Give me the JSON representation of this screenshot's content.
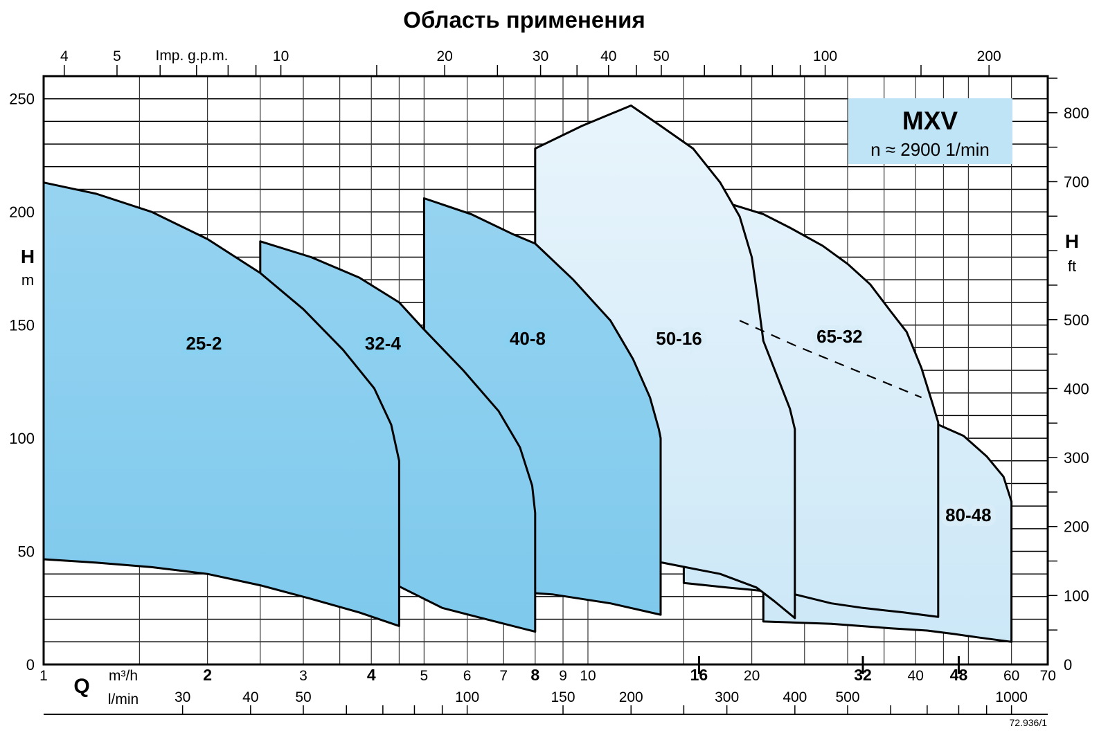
{
  "title": "Область применения",
  "stamp": "72.936/1",
  "legend": {
    "model": "MXV",
    "speed": "n ≈ 2900 1/min",
    "box_color": "#bfe4f6"
  },
  "colors": {
    "dark_top": "#9cd6f2",
    "dark_bottom": "#7cc8ec",
    "light_top": "#eaf5fc",
    "light_bottom": "#cbe7f7",
    "dark_halo": "#8ad0f0",
    "light_halo": "#d9edf9",
    "grid_h": "#000000",
    "grid_v": "#333333",
    "outline": "#000000"
  },
  "axes": {
    "x_m3h": {
      "symbol": "Q",
      "unit": "m³/h",
      "range": [
        1,
        70
      ],
      "scale": "log",
      "ticks": [
        {
          "v": 1,
          "label": "1",
          "bold": false
        },
        {
          "v": 2,
          "label": "2",
          "bold": true
        },
        {
          "v": 3,
          "label": "3",
          "bold": false
        },
        {
          "v": 4,
          "label": "4",
          "bold": true
        },
        {
          "v": 5,
          "label": "5",
          "bold": false
        },
        {
          "v": 6,
          "label": "6",
          "bold": false
        },
        {
          "v": 7,
          "label": "7",
          "bold": false
        },
        {
          "v": 8,
          "label": "8",
          "bold": true
        },
        {
          "v": 9,
          "label": "9",
          "bold": false
        },
        {
          "v": 10,
          "label": "10",
          "bold": false
        },
        {
          "v": 16,
          "label": "16",
          "bold": true
        },
        {
          "v": 20,
          "label": "20",
          "bold": false
        },
        {
          "v": 32,
          "label": "32",
          "bold": true
        },
        {
          "v": 40,
          "label": "40",
          "bold": false
        },
        {
          "v": 48,
          "label": "48",
          "bold": true
        },
        {
          "v": 60,
          "label": "60",
          "bold": false
        },
        {
          "v": 70,
          "label": "70",
          "bold": false
        }
      ],
      "gridlines": [
        1.5,
        2,
        2.5,
        3,
        3.5,
        4,
        4.5,
        5,
        6,
        7,
        8,
        9,
        10,
        15,
        20,
        25,
        30,
        35,
        40,
        45,
        50,
        60
      ]
    },
    "x_lmin": {
      "unit": "l/min",
      "ticks": [
        30,
        40,
        50,
        60,
        70,
        80,
        90,
        100,
        150,
        200,
        250,
        300,
        400,
        500,
        600,
        700,
        800,
        900,
        1000
      ],
      "labeled": [
        30,
        40,
        50,
        100,
        150,
        200,
        300,
        400,
        500,
        1000
      ],
      "to_m3h": 16.6667
    },
    "x_gpm": {
      "unit": "Imp. g.p.m.",
      "ticks": [
        4,
        5,
        6,
        7,
        8,
        9,
        10,
        15,
        20,
        25,
        30,
        35,
        40,
        45,
        50,
        60,
        70,
        80,
        90,
        100,
        150,
        200
      ],
      "labeled": [
        4,
        5,
        10,
        20,
        30,
        40,
        50,
        100,
        200
      ],
      "to_m3h": 0.2728
    },
    "y_m": {
      "symbol": "H",
      "unit": "m",
      "range": [
        0,
        260
      ],
      "grid_step": 10,
      "labeled": [
        0,
        50,
        100,
        150,
        200,
        250
      ]
    },
    "y_ft": {
      "symbol": "H",
      "unit": "ft",
      "range": [
        0,
        850
      ],
      "tick_step": 50,
      "labeled": [
        800,
        700,
        500,
        400,
        300,
        200,
        100,
        0
      ]
    }
  },
  "chart_data": {
    "type": "area",
    "x_scale": "log",
    "title": "Область применения",
    "note_paint_order": "regions listed back-to-front",
    "regions": [
      {
        "name": "80-48",
        "tone": "light",
        "label": "80-48",
        "label_at": [
          50,
          66
        ],
        "points": [
          [
            21,
            80
          ],
          [
            41,
            104
          ],
          [
            44,
            106
          ],
          [
            49,
            101
          ],
          [
            54,
            92
          ],
          [
            58,
            83
          ],
          [
            60,
            72
          ],
          [
            60,
            10
          ],
          [
            52,
            12
          ],
          [
            47,
            13.5
          ],
          [
            42,
            15
          ],
          [
            36,
            16
          ],
          [
            28,
            18
          ],
          [
            21,
            19
          ]
        ]
      },
      {
        "name": "65-32",
        "tone": "light",
        "label": "65-32",
        "label_at": [
          29,
          145
        ],
        "points": [
          [
            15,
            202
          ],
          [
            18,
            204
          ],
          [
            21,
            199
          ],
          [
            23.5,
            193
          ],
          [
            27,
            185
          ],
          [
            30,
            177
          ],
          [
            33,
            168
          ],
          [
            36,
            156
          ],
          [
            38.5,
            147
          ],
          [
            41,
            131
          ],
          [
            43,
            115
          ],
          [
            44,
            107
          ],
          [
            44,
            21
          ],
          [
            38,
            23
          ],
          [
            32,
            25
          ],
          [
            28,
            27
          ],
          [
            24,
            31
          ],
          [
            20,
            33
          ],
          [
            18,
            34
          ],
          [
            16.5,
            35
          ],
          [
            15,
            36
          ]
        ]
      },
      {
        "name": "50-16",
        "tone": "light",
        "label": "50-16",
        "label_at": [
          14.7,
          144
        ],
        "points": [
          [
            8,
            228
          ],
          [
            9.75,
            238
          ],
          [
            12,
            247
          ],
          [
            13.6,
            238
          ],
          [
            15.6,
            228
          ],
          [
            17.5,
            213
          ],
          [
            19,
            198
          ],
          [
            20,
            180
          ],
          [
            20.5,
            162
          ],
          [
            21,
            143
          ],
          [
            22.3,
            127
          ],
          [
            23.5,
            113
          ],
          [
            24,
            104
          ],
          [
            24,
            20.5
          ],
          [
            22,
            28
          ],
          [
            20.4,
            34
          ],
          [
            17.5,
            40
          ],
          [
            15.1,
            43
          ],
          [
            13.7,
            45
          ],
          [
            11.6,
            49
          ],
          [
            9.4,
            51
          ],
          [
            8,
            52
          ]
        ]
      },
      {
        "name": "40-8",
        "tone": "dark",
        "label": "40-8",
        "label_at": [
          7.75,
          144
        ],
        "points": [
          [
            5,
            206
          ],
          [
            6.1,
            199
          ],
          [
            7.3,
            190
          ],
          [
            8,
            186
          ],
          [
            9.4,
            170
          ],
          [
            11,
            152
          ],
          [
            12.1,
            135
          ],
          [
            13,
            118
          ],
          [
            13.5,
            104
          ],
          [
            13.6,
            100
          ],
          [
            13.6,
            22
          ],
          [
            11,
            27
          ],
          [
            8.6,
            31
          ],
          [
            8,
            31.5
          ],
          [
            6.5,
            33
          ],
          [
            5,
            34
          ]
        ]
      },
      {
        "name": "32-4",
        "tone": "dark",
        "label": "32-4",
        "label_at": [
          4.2,
          142
        ],
        "points": [
          [
            2.5,
            187
          ],
          [
            3.1,
            180
          ],
          [
            3.8,
            171
          ],
          [
            4.5,
            160
          ],
          [
            5,
            148
          ],
          [
            5.9,
            130
          ],
          [
            6.85,
            112
          ],
          [
            7.5,
            96
          ],
          [
            7.9,
            79
          ],
          [
            8,
            67
          ],
          [
            8,
            14.5
          ],
          [
            6.5,
            20
          ],
          [
            5.4,
            25
          ],
          [
            4.5,
            34.5
          ],
          [
            3.8,
            37
          ],
          [
            3.1,
            40
          ],
          [
            2.5,
            41
          ]
        ]
      },
      {
        "name": "25-2",
        "tone": "dark",
        "label": "25-2",
        "label_at": [
          1.97,
          142
        ],
        "points": [
          [
            1,
            213
          ],
          [
            1.25,
            208
          ],
          [
            1.58,
            200
          ],
          [
            2,
            188
          ],
          [
            2.5,
            173
          ],
          [
            3,
            157
          ],
          [
            3.55,
            139
          ],
          [
            4.05,
            122
          ],
          [
            4.35,
            106
          ],
          [
            4.5,
            90
          ],
          [
            4.5,
            17
          ],
          [
            3.8,
            23
          ],
          [
            3.1,
            29
          ],
          [
            2.5,
            35
          ],
          [
            2,
            40
          ],
          [
            1.58,
            43
          ],
          [
            1.25,
            45
          ],
          [
            1,
            46.5
          ]
        ]
      }
    ],
    "dashed_line": [
      [
        19,
        152
      ],
      [
        24,
        141
      ],
      [
        31,
        130
      ],
      [
        41,
        118
      ]
    ]
  }
}
